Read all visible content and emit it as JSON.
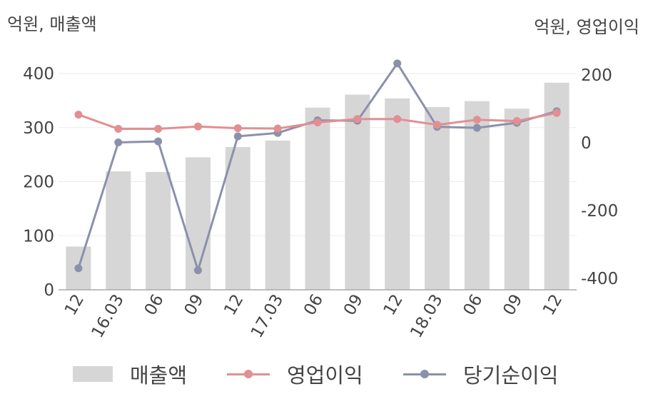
{
  "chart_data": {
    "type": "bar+line",
    "left_axis_unit": "억원, 매출액",
    "right_axis_unit": "억원, 영업이익",
    "categories": [
      "12",
      "16.03",
      "06",
      "09",
      "12",
      "17.03",
      "06",
      "09",
      "12",
      "18.03",
      "06",
      "09",
      "12"
    ],
    "left_ylim": [
      0,
      400
    ],
    "left_ticks": [
      "0",
      "100",
      "200",
      "300",
      "400"
    ],
    "right_ylim": [
      -430,
      220
    ],
    "right_ticks": [
      "-400",
      "-200",
      "0",
      "200"
    ],
    "series": [
      {
        "name": "매출액",
        "type": "bar",
        "axis": "left",
        "color": "#d6d6d6",
        "values": [
          80,
          219,
          218,
          245,
          264,
          276,
          337,
          361,
          354,
          338,
          349,
          335,
          383
        ]
      },
      {
        "name": "영업이익",
        "type": "line",
        "axis": "right",
        "color": "#e28f91",
        "values": [
          83,
          41,
          41,
          48,
          43,
          42,
          60,
          70,
          70,
          53,
          68,
          64,
          88
        ]
      },
      {
        "name": "당기순이익",
        "type": "line",
        "axis": "right",
        "color": "#8b91ab",
        "values": [
          -370,
          1,
          4,
          -376,
          19,
          29,
          66,
          65,
          234,
          47,
          44,
          59,
          93
        ]
      }
    ],
    "grid": true,
    "legend_position": "bottom"
  }
}
